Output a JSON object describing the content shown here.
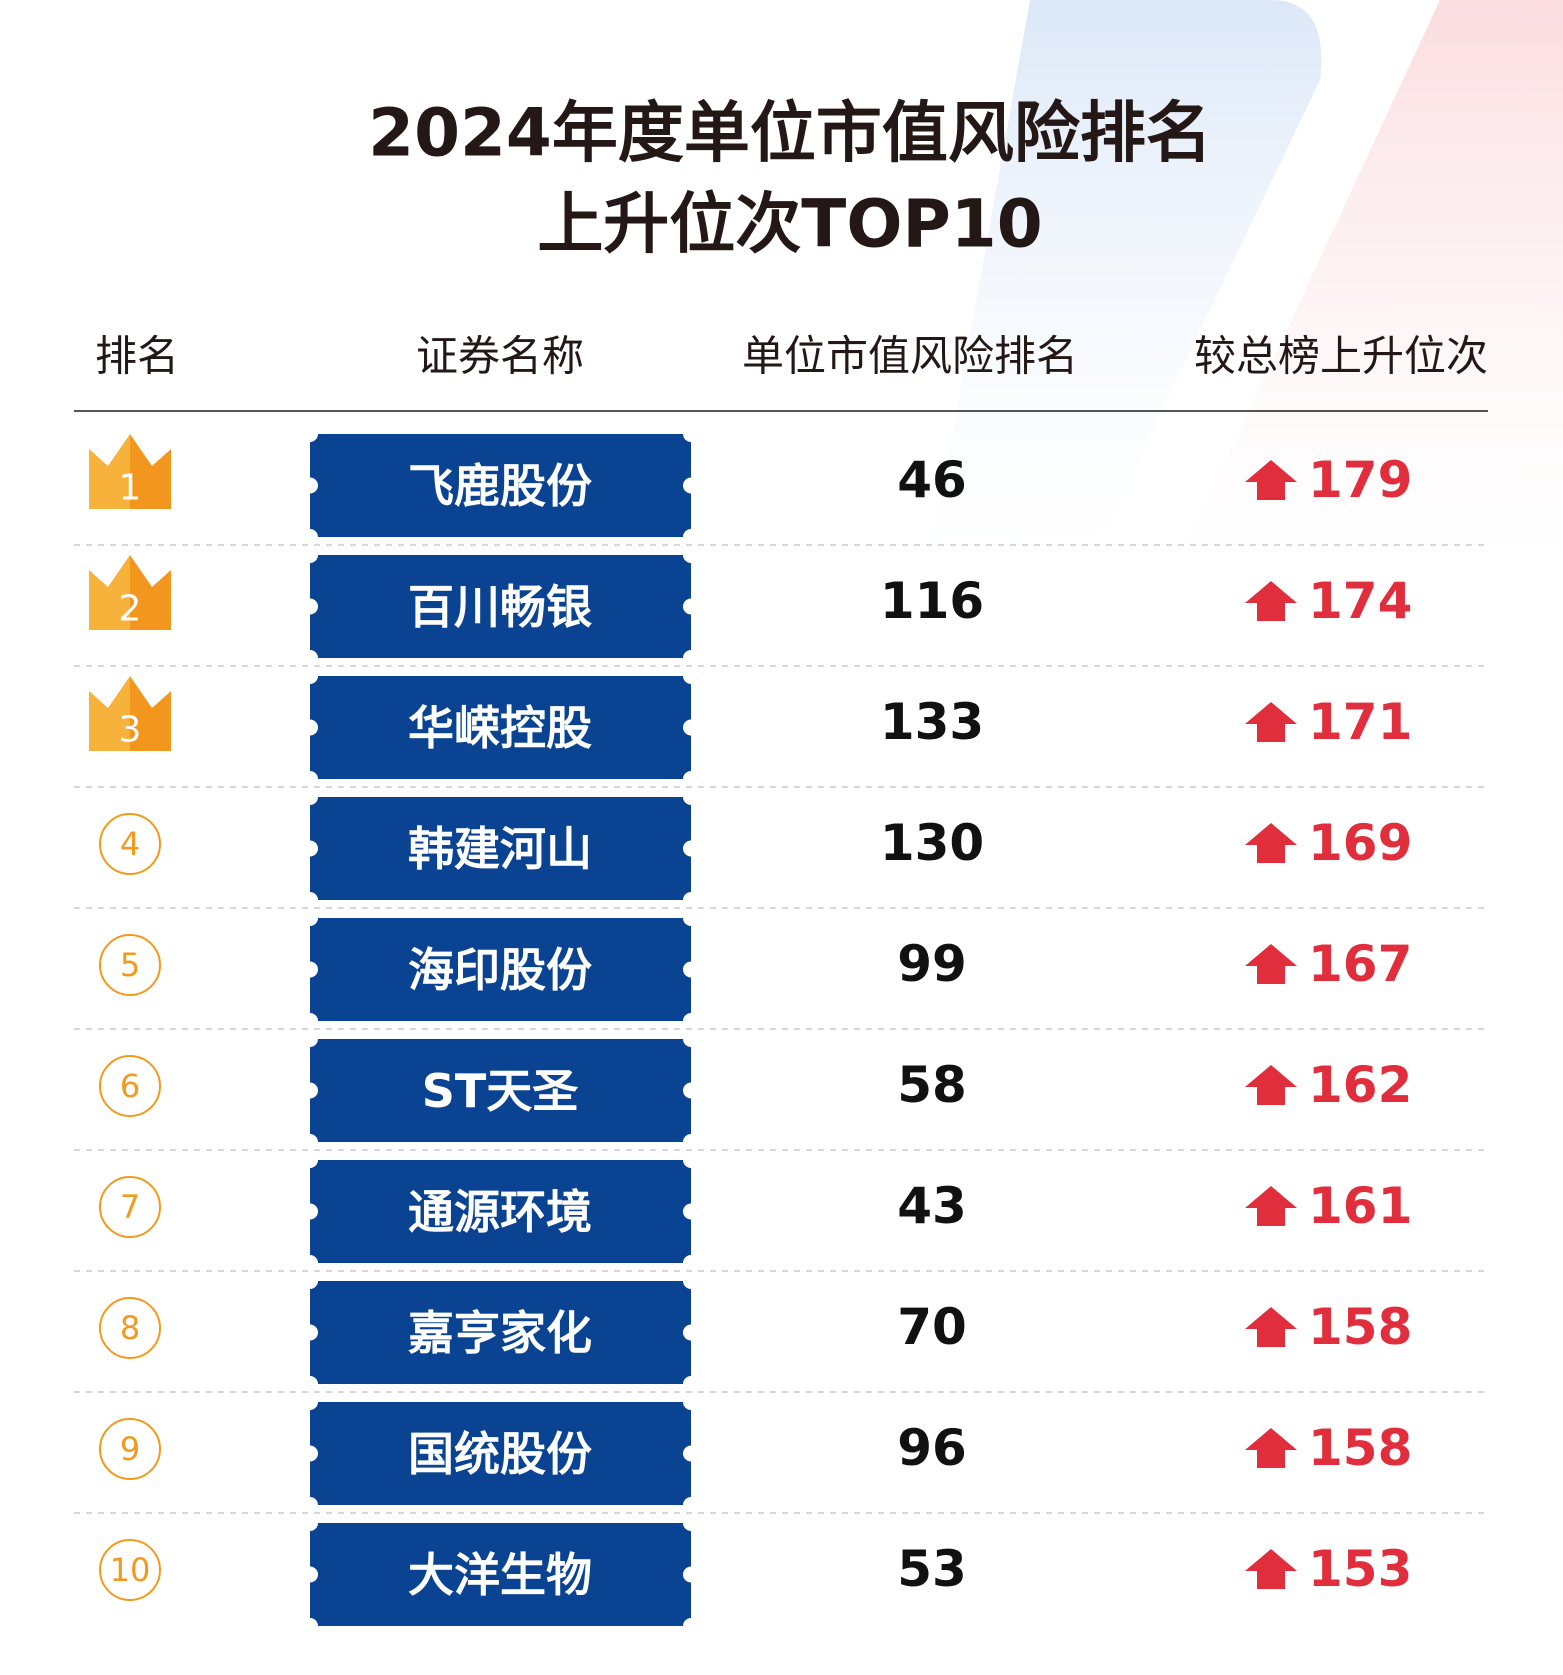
{
  "title": [
    "2024年度单位市值风险排名",
    "上升位次TOP10"
  ],
  "table": {
    "headers": [
      "排名",
      "证券名称",
      "单位市值风险排名",
      "较总榜上升位次"
    ],
    "rows": [
      [
        "1",
        "飞鹿股份",
        "46",
        "179"
      ],
      [
        "2",
        "百川畅银",
        "116",
        "174"
      ],
      [
        "3",
        "华嵘控股",
        "133",
        "171"
      ],
      [
        "4",
        "韩建河山",
        "130",
        "169"
      ],
      [
        "5",
        "海印股份",
        "99",
        "167"
      ],
      [
        "6",
        "ST天圣",
        "58",
        "162"
      ],
      [
        "7",
        "通源环境",
        "43",
        "161"
      ],
      [
        "8",
        "嘉亨家化",
        "70",
        "158"
      ],
      [
        "9",
        "国统股份",
        "96",
        "158"
      ],
      [
        "10",
        "大洋生物",
        "53",
        "153"
      ]
    ]
  }
}
